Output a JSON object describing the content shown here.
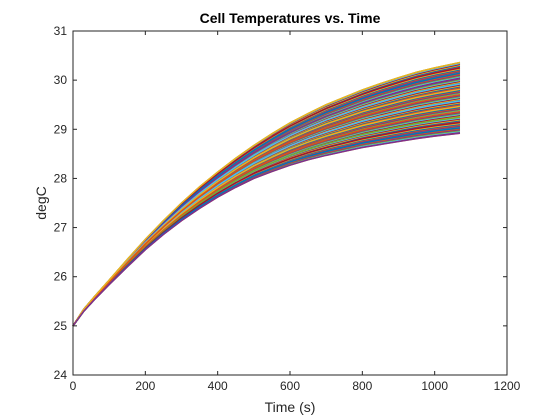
{
  "chart_data": {
    "type": "line",
    "title": "Cell Temperatures vs. Time",
    "xlabel": "Time (s)",
    "ylabel": "degC",
    "xlim": [
      0,
      1200
    ],
    "ylim": [
      24,
      31
    ],
    "xticks": [
      0,
      200,
      400,
      600,
      800,
      1000,
      1200
    ],
    "yticks": [
      24,
      25,
      26,
      27,
      28,
      29,
      30,
      31
    ],
    "grid": false,
    "legend": "none",
    "time": [
      0,
      30,
      60,
      100,
      150,
      200,
      250,
      300,
      350,
      400,
      450,
      500,
      550,
      600,
      650,
      700,
      750,
      800,
      850,
      900,
      950,
      1000,
      1070
    ],
    "envelope": {
      "upper": [
        25.0,
        25.34,
        25.6,
        25.93,
        26.35,
        26.76,
        27.14,
        27.5,
        27.83,
        28.13,
        28.41,
        28.67,
        28.91,
        29.13,
        29.32,
        29.5,
        29.65,
        29.8,
        29.93,
        30.05,
        30.16,
        30.25,
        30.36
      ],
      "lower": [
        25.0,
        25.3,
        25.54,
        25.84,
        26.2,
        26.55,
        26.86,
        27.14,
        27.39,
        27.62,
        27.82,
        28.0,
        28.14,
        28.27,
        28.38,
        28.47,
        28.55,
        28.63,
        28.69,
        28.75,
        28.81,
        28.86,
        28.92
      ]
    },
    "series_colors": [
      "#EDB120",
      "#0072BD",
      "#D95319",
      "#7E2F8E",
      "#77AC30",
      "#4DBEEE",
      "#A2142F"
    ],
    "series_count": 80
  }
}
